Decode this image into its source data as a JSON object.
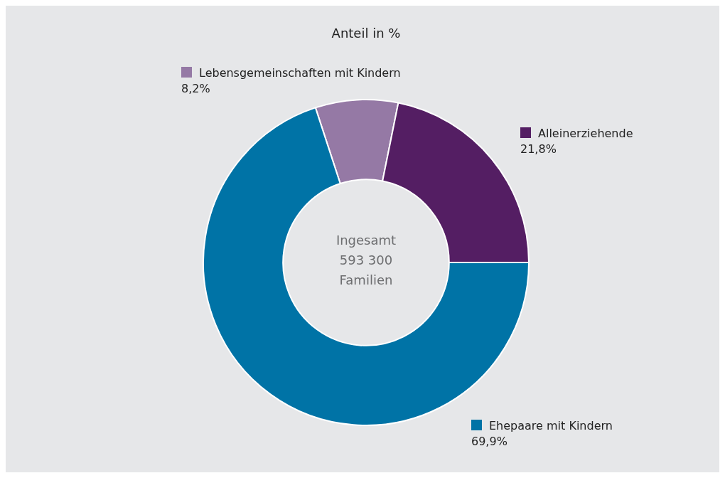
{
  "chart_data": {
    "type": "donut",
    "title": "Anteil in %",
    "categories": [
      "Lebensgemeinschaften mit Kindern",
      "Alleinerziehende",
      "Ehepaare mit Kindern"
    ],
    "values": [
      8.2,
      21.8,
      69.9
    ],
    "value_labels": [
      "8,2%",
      "21,8%",
      "69,9%"
    ],
    "colors": [
      "#9579a5",
      "#541e63",
      "#0073a6"
    ],
    "legend": "right",
    "annotations": [
      "Ingesamt 593 300 Familien"
    ]
  }
}
